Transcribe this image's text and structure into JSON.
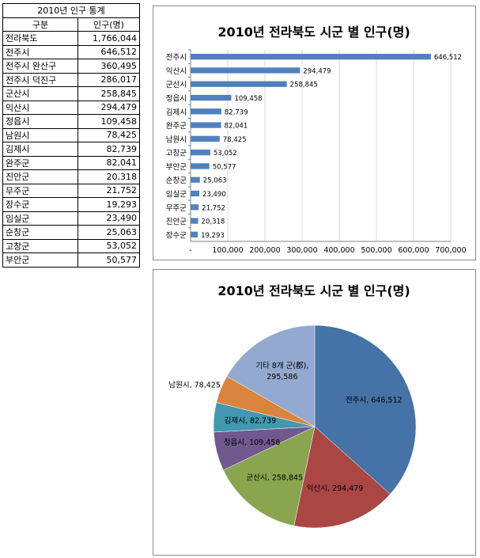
{
  "table": {
    "title": "2010년 인구 통계",
    "headers": [
      "구분",
      "인구(명)"
    ],
    "rows": [
      {
        "name": "전라북도",
        "value": "1,766,044"
      },
      {
        "name": "전주시",
        "value": "646,512"
      },
      {
        "name": "전주시 완산구",
        "value": "360,495"
      },
      {
        "name": "전주시 덕진구",
        "value": "286,017"
      },
      {
        "name": "군산시",
        "value": "258,845"
      },
      {
        "name": "익산시",
        "value": "294,479"
      },
      {
        "name": "정읍시",
        "value": "109,458"
      },
      {
        "name": "남원시",
        "value": "78,425"
      },
      {
        "name": "김제시",
        "value": "82,739"
      },
      {
        "name": "완주군",
        "value": "82,041"
      },
      {
        "name": "진안군",
        "value": "20,318"
      },
      {
        "name": "무주군",
        "value": "21,752"
      },
      {
        "name": "장수군",
        "value": "19,293"
      },
      {
        "name": "임실군",
        "value": "23,490"
      },
      {
        "name": "순창군",
        "value": "25,063"
      },
      {
        "name": "고창군",
        "value": "53,052"
      },
      {
        "name": "부안군",
        "value": "50,577"
      }
    ]
  },
  "chart_data": [
    {
      "type": "bar",
      "orientation": "horizontal",
      "title": "2010년 전라북도 시군 별 인구(명)",
      "categories": [
        "전주시",
        "익산시",
        "군산시",
        "정읍시",
        "김제시",
        "완주군",
        "남원시",
        "고창군",
        "부안군",
        "순창군",
        "임실군",
        "무주군",
        "진안군",
        "장수군"
      ],
      "values": [
        646512,
        294479,
        258845,
        109458,
        82739,
        82041,
        78425,
        53052,
        50577,
        25063,
        23490,
        21752,
        20318,
        19293
      ],
      "value_labels": [
        "646,512",
        "294,479",
        "258,845",
        "109,458",
        "82,739",
        "82,041",
        "78,425",
        "53,052",
        "50,577",
        "25,063",
        "23,490",
        "21,752",
        "20,318",
        "19,293"
      ],
      "xlim": [
        0,
        700000
      ],
      "x_ticks": [
        0,
        100000,
        200000,
        300000,
        400000,
        500000,
        600000,
        700000
      ],
      "x_tick_labels": [
        "-",
        "100,000",
        "200,000",
        "300,000",
        "400,000",
        "500,000",
        "600,000",
        "700,000"
      ],
      "bar_color": "#4f81bd",
      "grid": true
    },
    {
      "type": "pie",
      "title": "2010년 전라북도 시군 별 인구(명)",
      "slices": [
        {
          "name": "전주시",
          "value": 646512,
          "label": "646,512",
          "color": "#4572a7"
        },
        {
          "name": "익산시",
          "value": 294479,
          "label": "294,479",
          "color": "#aa4643"
        },
        {
          "name": "군산시",
          "value": 258845,
          "label": "258,845",
          "color": "#89a54e"
        },
        {
          "name": "정읍시",
          "value": 109458,
          "label": "109,458",
          "color": "#71588f"
        },
        {
          "name": "김제시",
          "value": 82739,
          "label": "82,739",
          "color": "#4198af"
        },
        {
          "name": "남원시",
          "value": 78425,
          "label": "78,425",
          "color": "#db843d"
        },
        {
          "name": "기타 8개 군(郡)",
          "value": 295586,
          "label": "295,586",
          "color": "#93a9cf"
        }
      ]
    }
  ]
}
